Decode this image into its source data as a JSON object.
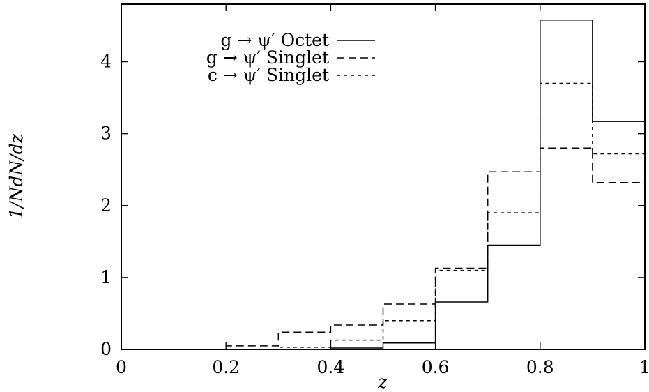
{
  "chart_data": {
    "type": "line",
    "step": true,
    "xlabel": "z",
    "ylabel": "1/NdN/dz",
    "xlim": [
      0,
      1
    ],
    "ylim": [
      0,
      4.8
    ],
    "xticks": [
      0,
      0.2,
      0.4,
      0.6,
      0.8,
      1
    ],
    "xtick_labels": [
      "0",
      "0.2",
      "0.4",
      "0.6",
      "0.8",
      "1"
    ],
    "yticks": [
      0,
      1,
      2,
      3,
      4
    ],
    "ytick_labels": [
      "0",
      "1",
      "2",
      "3",
      "4"
    ],
    "grid": false,
    "legend_position": "top-left",
    "bin_edges": [
      0,
      0.1,
      0.2,
      0.3,
      0.4,
      0.5,
      0.6,
      0.7,
      0.8,
      0.9,
      1.0
    ],
    "series": [
      {
        "name": "g → ψ′ Octet",
        "dash": "solid",
        "values": [
          0,
          0,
          0,
          0,
          0.02,
          0.09,
          0.66,
          1.45,
          4.58,
          3.17
        ]
      },
      {
        "name": "g → ψ′ Singlet",
        "dash": "long-dash",
        "values": [
          0,
          0,
          0.05,
          0.24,
          0.34,
          0.63,
          1.13,
          2.47,
          2.8,
          2.32
        ]
      },
      {
        "name": "c → ψ′ Singlet",
        "dash": "short-dash",
        "values": [
          0,
          0,
          0,
          0.03,
          0.13,
          0.4,
          1.1,
          1.9,
          3.7,
          2.72
        ]
      }
    ]
  }
}
